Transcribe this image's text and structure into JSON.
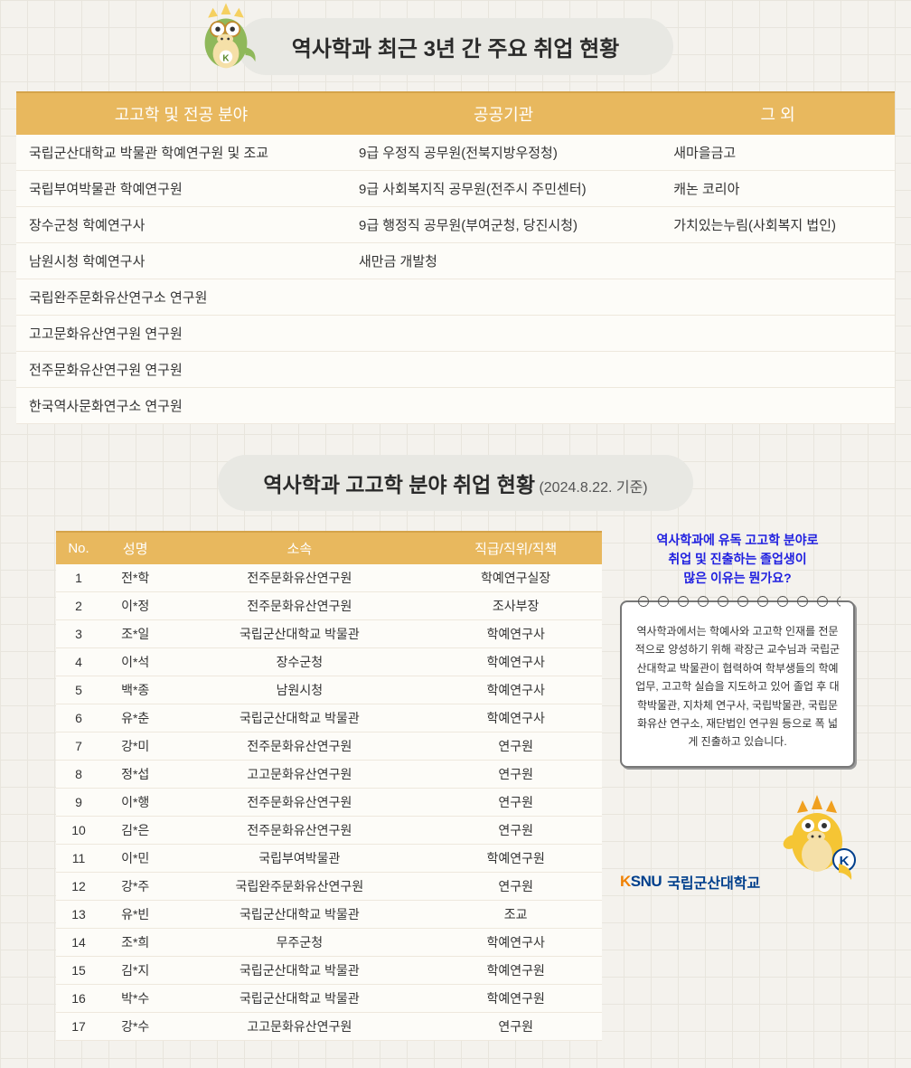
{
  "section1": {
    "title": "역사학과 최근 3년 간 주요 취업 현황",
    "columns": [
      "고고학 및 전공 분야",
      "공공기관",
      "그 외"
    ],
    "rows": [
      [
        "국립군산대학교 박물관 학예연구원 및 조교",
        "9급 우정직 공무원(전북지방우정청)",
        "새마을금고"
      ],
      [
        "국립부여박물관 학예연구원",
        "9급 사회복지직 공무원(전주시 주민센터)",
        "캐논 코리아"
      ],
      [
        "장수군청 학예연구사",
        "9급 행정직 공무원(부여군청, 당진시청)",
        "가치있는누림(사회복지 법인)"
      ],
      [
        "남원시청 학예연구사",
        "새만금 개발청",
        ""
      ],
      [
        "국립완주문화유산연구소 연구원",
        "",
        ""
      ],
      [
        "고고문화유산연구원 연구원",
        "",
        ""
      ],
      [
        "전주문화유산연구원 연구원",
        "",
        ""
      ],
      [
        "한국역사문화연구소 연구원",
        "",
        ""
      ]
    ],
    "header_bg": "#e8b85e",
    "header_color": "#ffffff",
    "row_bg": "#fdfcf8"
  },
  "section2": {
    "title": "역사학과 고고학 분야 취업 현황",
    "subtitle": "(2024.8.22. 기준)",
    "columns": [
      "No.",
      "성명",
      "소속",
      "직급/직위/직책"
    ],
    "rows": [
      [
        "1",
        "전*학",
        "전주문화유산연구원",
        "학예연구실장"
      ],
      [
        "2",
        "이*정",
        "전주문화유산연구원",
        "조사부장"
      ],
      [
        "3",
        "조*일",
        "국립군산대학교 박물관",
        "학예연구사"
      ],
      [
        "4",
        "이*석",
        "장수군청",
        "학예연구사"
      ],
      [
        "5",
        "백*종",
        "남원시청",
        "학예연구사"
      ],
      [
        "6",
        "유*춘",
        "국립군산대학교 박물관",
        "학예연구사"
      ],
      [
        "7",
        "강*미",
        "전주문화유산연구원",
        "연구원"
      ],
      [
        "8",
        "정*섭",
        "고고문화유산연구원",
        "연구원"
      ],
      [
        "9",
        "이*행",
        "전주문화유산연구원",
        "연구원"
      ],
      [
        "10",
        "김*은",
        "전주문화유산연구원",
        "연구원"
      ],
      [
        "11",
        "이*민",
        "국립부여박물관",
        "학예연구원"
      ],
      [
        "12",
        "강*주",
        "국립완주문화유산연구원",
        "연구원"
      ],
      [
        "13",
        "유*빈",
        "국립군산대학교 박물관",
        "조교"
      ],
      [
        "14",
        "조*희",
        "무주군청",
        "학예연구사"
      ],
      [
        "15",
        "김*지",
        "국립군산대학교 박물관",
        "학예연구원"
      ],
      [
        "16",
        "박*수",
        "국립군산대학교 박물관",
        "학예연구원"
      ],
      [
        "17",
        "강*수",
        "고고문화유산연구원",
        "연구원"
      ]
    ]
  },
  "sidebar": {
    "question_l1": "역사학과에 유독 고고학 분야로",
    "question_l2": "취업 및 진출하는 졸업생이",
    "question_l3": "많은 이유는 뭔가요?",
    "answer": "역사학과에서는 학예사와 고고학 인재를 전문적으로 양성하기 위해 곽장근 교수님과 국립군산대학교 박물관이 협력하여 학부생들의 학예업무, 고고학 실습을 지도하고 있어 졸업 후 대학박물관, 지차체 연구사, 국립박물관, 국립문화유산 연구소, 재단법인 연구원 등으로 폭 넓게 진출하고 있습니다."
  },
  "logo": {
    "en": "KSNU",
    "ko": "국립군산대학교"
  },
  "colors": {
    "header_bg": "#e8b85e",
    "header_border": "#d4a34a",
    "grid_bg": "#f4f2ed",
    "grid_line": "#e8e5dd",
    "question_color": "#2020e0",
    "logo_blue": "#003f8c",
    "logo_orange": "#f08000"
  }
}
